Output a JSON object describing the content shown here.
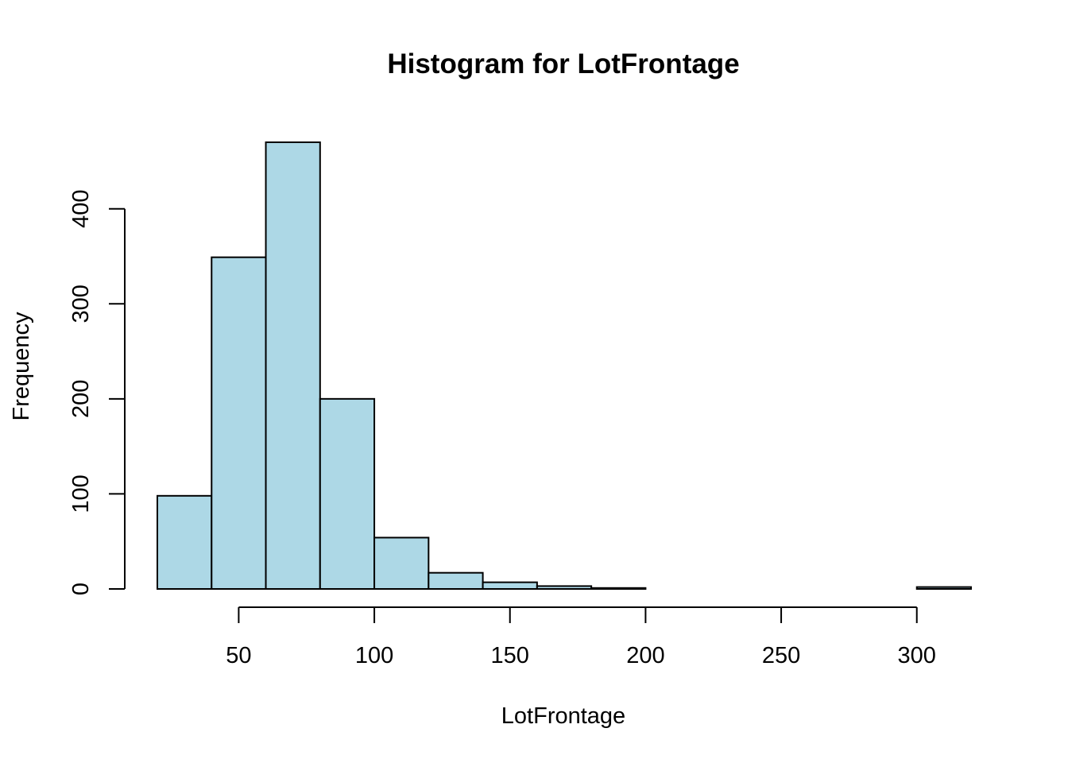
{
  "colors": {
    "bar_fill": "#add8e6",
    "bar_stroke": "#000000",
    "axis": "#000000",
    "background": "#ffffff"
  },
  "chart_data": {
    "type": "bar",
    "title": "Histogram for LotFrontage",
    "xlabel": "LotFrontage",
    "ylabel": "Frequency",
    "bin_edges": [
      20,
      40,
      60,
      80,
      100,
      120,
      140,
      160,
      180,
      200,
      220,
      240,
      260,
      280,
      300,
      320
    ],
    "values": [
      98,
      349,
      470,
      200,
      54,
      17,
      7,
      3,
      1,
      0,
      0,
      0,
      0,
      0,
      2
    ],
    "x_ticks": [
      50,
      100,
      150,
      200,
      250,
      300
    ],
    "y_ticks": [
      0,
      100,
      200,
      300,
      400
    ],
    "xlim": [
      20,
      320
    ],
    "ylim": [
      0,
      470
    ],
    "grid": false,
    "legend": "none"
  }
}
